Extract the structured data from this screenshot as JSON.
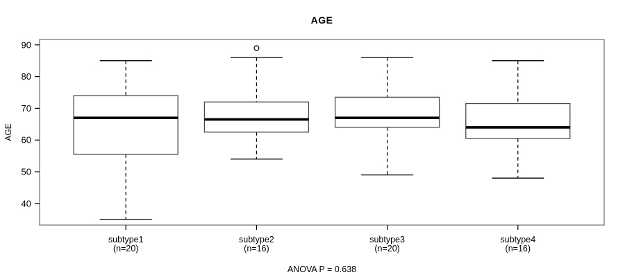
{
  "title": "AGE",
  "y_axis_label": "AGE",
  "annotation": "ANOVA P = 0.638",
  "chart_data": {
    "type": "boxplot",
    "title": "AGE",
    "xlabel": "",
    "ylabel": "AGE",
    "annotation": "ANOVA P = 0.638",
    "grid": false,
    "ylim": [
      33.2,
      91.7
    ],
    "xlim": [
      0.34,
      4.66
    ],
    "y_ticks": [
      40,
      50,
      60,
      70,
      80,
      90
    ],
    "categories": [
      {
        "label": "subtype1",
        "sublabel": "(n=20)",
        "position": 1,
        "min": 35,
        "q1": 55.5,
        "median": 67,
        "q3": 74,
        "max": 85,
        "outliers": []
      },
      {
        "label": "subtype2",
        "sublabel": "(n=16)",
        "position": 2,
        "min": 54,
        "q1": 62.5,
        "median": 66.5,
        "q3": 72,
        "max": 86,
        "outliers": [
          89
        ]
      },
      {
        "label": "subtype3",
        "sublabel": "(n=20)",
        "position": 3,
        "min": 49,
        "q1": 64,
        "median": 67,
        "q3": 73.5,
        "max": 86,
        "outliers": []
      },
      {
        "label": "subtype4",
        "sublabel": "(n=16)",
        "position": 4,
        "min": 48,
        "q1": 60.5,
        "median": 64,
        "q3": 71.5,
        "max": 85,
        "outliers": []
      }
    ],
    "colors": {
      "line": "#000000",
      "box_stroke": "#4a4a4a",
      "frame_stroke": "#828282",
      "median": "#000000",
      "background": "#ffffff",
      "text": "#000000"
    }
  }
}
